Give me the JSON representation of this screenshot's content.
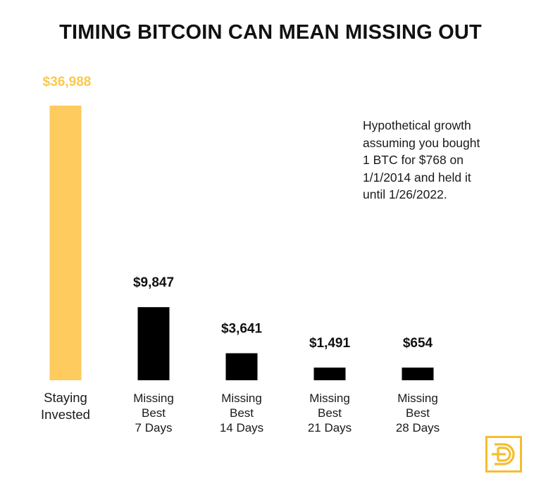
{
  "title": "TIMING BITCOIN CAN MEAN MISSING OUT",
  "annotation": {
    "lines": [
      "Hypothetical growth",
      "assuming you bought",
      "1 BTC for $768 on",
      "1/1/2014 and held it",
      "until 1/26/2022."
    ]
  },
  "chart_data": {
    "type": "bar",
    "title": "TIMING BITCOIN CAN MEAN MISSING OUT",
    "xlabel": "",
    "ylabel": "",
    "grid": false,
    "legend": "none",
    "ylim": [
      0,
      36988
    ],
    "categories": [
      [
        "Staying",
        "Invested"
      ],
      [
        "Missing",
        "Best",
        "7 Days"
      ],
      [
        "Missing",
        "Best",
        "14 Days"
      ],
      [
        "Missing",
        "Best",
        "21 Days"
      ],
      [
        "Missing",
        "Best",
        "28 Days"
      ]
    ],
    "values": [
      36988,
      9847,
      3641,
      1491,
      654
    ],
    "data_labels": [
      "$36,988",
      "$9,847",
      "$3,641",
      "$1,491",
      "$654"
    ],
    "colors": [
      "#FDCB5E",
      "#000000",
      "#000000",
      "#000000",
      "#000000"
    ],
    "label_colors": [
      "#FDC94A",
      "#111111",
      "#111111",
      "#111111",
      "#111111"
    ]
  },
  "logo": {
    "name": "brand-logo-icon",
    "color": "#F5BE2E"
  }
}
